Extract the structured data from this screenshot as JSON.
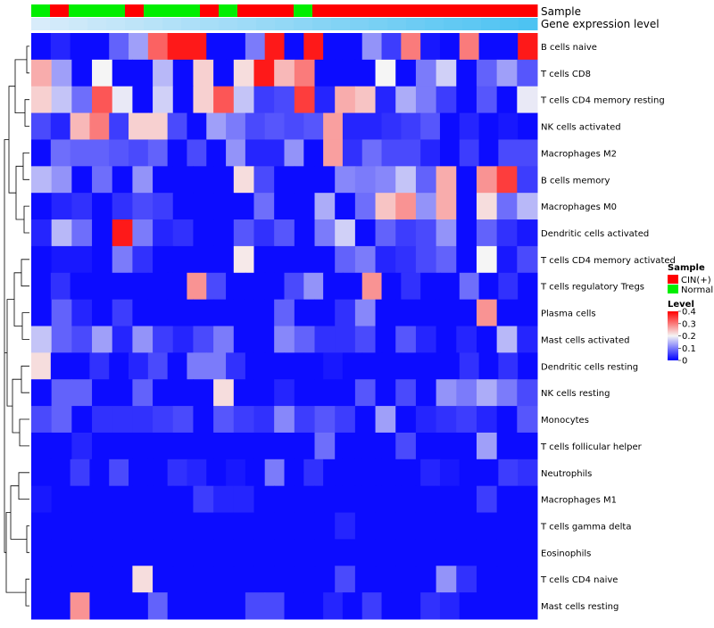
{
  "chart_data": {
    "type": "heatmap",
    "annotation_tracks": [
      "Sample",
      "Gene expression level"
    ],
    "sample_groups": [
      "N",
      "C",
      "N",
      "N",
      "N",
      "C",
      "N",
      "N",
      "N",
      "C",
      "N",
      "C",
      "C",
      "C",
      "N",
      "C",
      "C",
      "C",
      "C",
      "C",
      "C",
      "C",
      "C",
      "C",
      "C",
      "C",
      "C"
    ],
    "gene_expression_level": [
      0,
      0.04,
      0.08,
      0.12,
      0.15,
      0.19,
      0.23,
      0.27,
      0.31,
      0.35,
      0.38,
      0.42,
      0.46,
      0.5,
      0.54,
      0.58,
      0.62,
      0.65,
      0.69,
      0.73,
      0.77,
      0.81,
      0.85,
      0.88,
      0.92,
      0.96,
      1
    ],
    "rows": [
      "B cells naive",
      "T cells CD8",
      "T cells CD4 memory resting",
      "NK cells activated",
      "Macrophages M2",
      "B cells memory",
      "Macrophages M0",
      "Dendritic cells activated",
      "T cells CD4 memory activated",
      "T cells regulatory  Tregs",
      "Plasma cells",
      "Mast cells activated",
      "Dendritic cells resting",
      "NK cells resting",
      "Monocytes",
      "T cells follicular helper",
      "Neutrophils",
      "Macrophages M1",
      "T cells gamma delta",
      "Eosinophils",
      "T cells CD4 naive",
      "Mast cells resting"
    ],
    "values": [
      [
        0.01,
        0.03,
        0.01,
        0.01,
        0.08,
        0.13,
        0.32,
        0.38,
        0.38,
        0.01,
        0.01,
        0.1,
        0.38,
        0.01,
        0.38,
        0.01,
        0.01,
        0.12,
        0.05,
        0.3,
        0.02,
        0.01,
        0.3,
        0.01,
        0.01,
        0.38
      ],
      [
        0.26,
        0.13,
        0.01,
        0.2,
        0.01,
        0.01,
        0.15,
        0.01,
        0.23,
        0.01,
        0.22,
        0.38,
        0.25,
        0.3,
        0.01,
        0.01,
        0.01,
        0.2,
        0.01,
        0.1,
        0.17,
        0.01,
        0.08,
        0.13,
        0.07
      ],
      [
        0.23,
        0.16,
        0.09,
        0.33,
        0.19,
        0.01,
        0.17,
        0.01,
        0.23,
        0.33,
        0.16,
        0.05,
        0.06,
        0.35,
        0.03,
        0.26,
        0.24,
        0.03,
        0.14,
        0.1,
        0.05,
        0.01,
        0.07,
        0.01,
        0.19
      ],
      [
        0.06,
        0.03,
        0.25,
        0.3,
        0.05,
        0.23,
        0.23,
        0.06,
        0.01,
        0.13,
        0.1,
        0.06,
        0.07,
        0.06,
        0.07,
        0.27,
        0.03,
        0.03,
        0.04,
        0.05,
        0.07,
        0.01,
        0.03,
        0.01,
        0.02,
        0.01
      ],
      [
        0.01,
        0.09,
        0.08,
        0.08,
        0.07,
        0.06,
        0.08,
        0.01,
        0.06,
        0.01,
        0.12,
        0.03,
        0.03,
        0.12,
        0.01,
        0.27,
        0.04,
        0.09,
        0.06,
        0.06,
        0.03,
        0.01,
        0.05,
        0.01,
        0.06,
        0.06
      ],
      [
        0.15,
        0.12,
        0.01,
        0.09,
        0.01,
        0.12,
        0.01,
        0.01,
        0.01,
        0.01,
        0.22,
        0.06,
        0.01,
        0.01,
        0.01,
        0.11,
        0.1,
        0.11,
        0.16,
        0.08,
        0.26,
        0.01,
        0.28,
        0.35,
        0.05
      ],
      [
        0.01,
        0.03,
        0.04,
        0.01,
        0.04,
        0.06,
        0.05,
        0.01,
        0.01,
        0.01,
        0.01,
        0.09,
        0.01,
        0.01,
        0.14,
        0.01,
        0.09,
        0.24,
        0.28,
        0.12,
        0.26,
        0.01,
        0.22,
        0.09,
        0.15
      ],
      [
        0.03,
        0.15,
        0.09,
        0.01,
        0.38,
        0.1,
        0.03,
        0.04,
        0.01,
        0.01,
        0.07,
        0.04,
        0.07,
        0.01,
        0.1,
        0.17,
        0.01,
        0.08,
        0.05,
        0.06,
        0.12,
        0.01,
        0.08,
        0.04,
        0.02
      ],
      [
        0.01,
        0.02,
        0.02,
        0.01,
        0.1,
        0.04,
        0.01,
        0.01,
        0.01,
        0.01,
        0.21,
        0.01,
        0.01,
        0.01,
        0.01,
        0.08,
        0.1,
        0.03,
        0.04,
        0.06,
        0.08,
        0.01,
        0.2,
        0.02,
        0.06
      ],
      [
        0.01,
        0.04,
        0.01,
        0.01,
        0.01,
        0.01,
        0.01,
        0.01,
        0.28,
        0.06,
        0.01,
        0.01,
        0.01,
        0.06,
        0.12,
        0.01,
        0.01,
        0.28,
        0.01,
        0.04,
        0.01,
        0.01,
        0.09,
        0.01,
        0.04,
        0.01
      ],
      [
        0.01,
        0.08,
        0.03,
        0.01,
        0.05,
        0.01,
        0.01,
        0.01,
        0.01,
        0.01,
        0.01,
        0.01,
        0.08,
        0.01,
        0.01,
        0.04,
        0.11,
        0.01,
        0.01,
        0.01,
        0.01,
        0.01,
        0.28,
        0.01,
        0.01
      ],
      [
        0.16,
        0.08,
        0.06,
        0.13,
        0.03,
        0.12,
        0.05,
        0.03,
        0.06,
        0.1,
        0.01,
        0.01,
        0.11,
        0.08,
        0.04,
        0.04,
        0.06,
        0.01,
        0.07,
        0.03,
        0.01,
        0.03,
        0.01,
        0.15,
        0.03
      ],
      [
        0.22,
        0.01,
        0.01,
        0.04,
        0.01,
        0.03,
        0.06,
        0.01,
        0.1,
        0.1,
        0.04,
        0.01,
        0.01,
        0.01,
        0.01,
        0.02,
        0.01,
        0.01,
        0.01,
        0.01,
        0.01,
        0.01,
        0.04,
        0.01,
        0.04,
        0.01
      ],
      [
        0.01,
        0.08,
        0.08,
        0.01,
        0.01,
        0.08,
        0.01,
        0.01,
        0.01,
        0.22,
        0.01,
        0.01,
        0.03,
        0.01,
        0.01,
        0.01,
        0.07,
        0.01,
        0.06,
        0.01,
        0.12,
        0.1,
        0.14,
        0.1,
        0.06
      ],
      [
        0.06,
        0.08,
        0.01,
        0.04,
        0.04,
        0.04,
        0.05,
        0.06,
        0.01,
        0.07,
        0.05,
        0.04,
        0.11,
        0.05,
        0.07,
        0.05,
        0.01,
        0.13,
        0.01,
        0.03,
        0.04,
        0.05,
        0.03,
        0.01,
        0.07
      ],
      [
        0.01,
        0.01,
        0.03,
        0.01,
        0.01,
        0.01,
        0.01,
        0.01,
        0.01,
        0.01,
        0.01,
        0.01,
        0.01,
        0.01,
        0.09,
        0.01,
        0.01,
        0.01,
        0.06,
        0.01,
        0.01,
        0.01,
        0.13,
        0.01,
        0.01
      ],
      [
        0.01,
        0.01,
        0.05,
        0.01,
        0.06,
        0.01,
        0.01,
        0.04,
        0.03,
        0.01,
        0.02,
        0.01,
        0.1,
        0.01,
        0.04,
        0.01,
        0.01,
        0.01,
        0.01,
        0.01,
        0.03,
        0.02,
        0.01,
        0.01,
        0.05,
        0.04
      ],
      [
        0.02,
        0.01,
        0.01,
        0.01,
        0.01,
        0.01,
        0.01,
        0.01,
        0.05,
        0.03,
        0.03,
        0.01,
        0.01,
        0.01,
        0.01,
        0.01,
        0.01,
        0.01,
        0.01,
        0.01,
        0.01,
        0.01,
        0.05,
        0.01,
        0.01
      ],
      [
        0.01,
        0.01,
        0.01,
        0.01,
        0.01,
        0.01,
        0.01,
        0.01,
        0.01,
        0.01,
        0.01,
        0.01,
        0.01,
        0.01,
        0.01,
        0.03,
        0.01,
        0.01,
        0.01,
        0.01,
        0.01,
        0.01,
        0.01,
        0.01,
        0.01
      ],
      [
        0.01,
        0.01,
        0.01,
        0.01,
        0.01,
        0.01,
        0.01,
        0.01,
        0.01,
        0.01,
        0.01,
        0.01,
        0.01,
        0.01,
        0.01,
        0.01,
        0.01,
        0.01,
        0.01,
        0.01,
        0.01,
        0.01,
        0.01,
        0.01,
        0.01
      ],
      [
        0.01,
        0.01,
        0.01,
        0.01,
        0.01,
        0.22,
        0.01,
        0.01,
        0.01,
        0.01,
        0.01,
        0.01,
        0.01,
        0.01,
        0.01,
        0.06,
        0.01,
        0.01,
        0.01,
        0.01,
        0.12,
        0.04,
        0.01,
        0.01,
        0.01
      ],
      [
        0.01,
        0.01,
        0.28,
        0.01,
        0.01,
        0.01,
        0.08,
        0.01,
        0.01,
        0.01,
        0.01,
        0.06,
        0.06,
        0.01,
        0.01,
        0.03,
        0.01,
        0.05,
        0.01,
        0.01,
        0.04,
        0.03,
        0.01,
        0.01,
        0.01,
        0.01
      ]
    ],
    "legend": {
      "sample_title": "Sample",
      "sample_items": [
        {
          "label": "CIN(+)",
          "color": "#ff0000"
        },
        {
          "label": "Normal",
          "color": "#00ee00"
        }
      ],
      "level_title": "Level",
      "level_ticks": [
        0.4,
        0.3,
        0.2,
        0.1,
        0
      ],
      "level_range": [
        0,
        0.4
      ]
    },
    "colors": {
      "low": "#0000ff",
      "mid": "#f5f5f5",
      "high": "#ff0000",
      "cin": "#ff0000",
      "normal": "#00ee00",
      "expr_low": "#d8ecfa",
      "expr_high": "#4dc3f2"
    }
  }
}
